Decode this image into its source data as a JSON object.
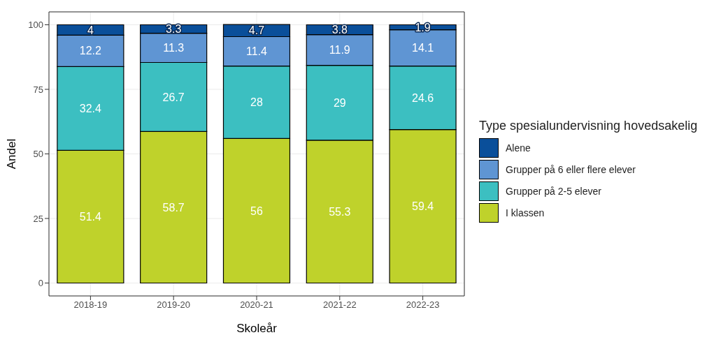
{
  "chart_data": {
    "type": "bar",
    "stacked": true,
    "xlabel": "Skoleår",
    "ylabel": "Andel",
    "legend_title": "Type spesialundervisning hovedsakelig",
    "categories": [
      "2018-19",
      "2019-20",
      "2020-21",
      "2021-22",
      "2022-23"
    ],
    "series": [
      {
        "name": "I klassen",
        "color": "#bfd22b",
        "values": [
          51.4,
          58.7,
          56,
          55.3,
          59.4
        ]
      },
      {
        "name": "Grupper på 2-5 elever",
        "color": "#3cbfc1",
        "values": [
          32.4,
          26.7,
          28,
          29,
          24.6
        ]
      },
      {
        "name": "Grupper på 6 eller flere elever",
        "color": "#5f95d3",
        "values": [
          12.2,
          11.3,
          11.4,
          11.9,
          14.1
        ]
      },
      {
        "name": "Alene",
        "color": "#0a4f9a",
        "values": [
          4,
          3.3,
          4.7,
          3.8,
          1.9
        ]
      }
    ],
    "ylim": [
      -5,
      105
    ],
    "yticks": [
      0,
      25,
      50,
      75,
      100
    ],
    "grid": true,
    "legend": "right",
    "data_labels": true
  }
}
